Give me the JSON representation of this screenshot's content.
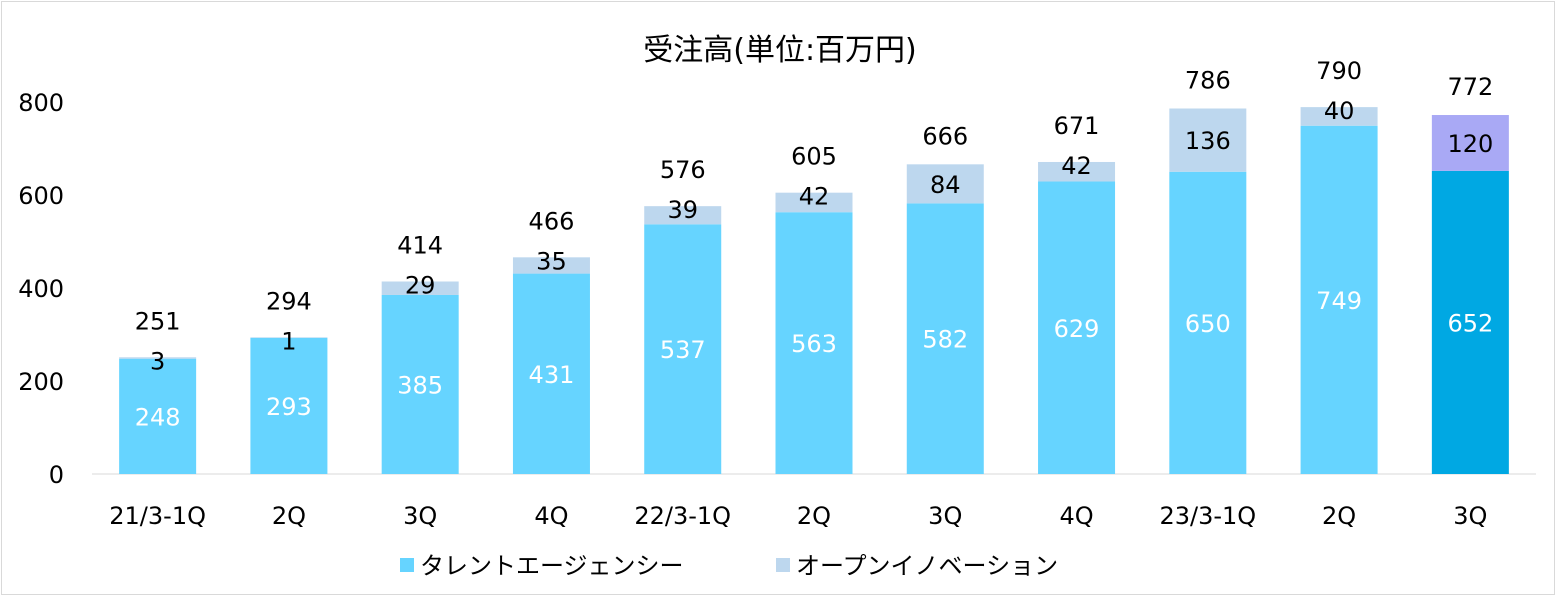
{
  "chart_data": {
    "type": "bar",
    "stacked": true,
    "title": "受注高(単位:百万円)",
    "categories": [
      "21/3-1Q",
      "2Q",
      "3Q",
      "4Q",
      "22/3-1Q",
      "2Q",
      "3Q",
      "4Q",
      "23/3-1Q",
      "2Q",
      "3Q"
    ],
    "series": [
      {
        "name": "タレントエージェンシー",
        "values": [
          248,
          293,
          385,
          431,
          537,
          563,
          582,
          629,
          650,
          749,
          652
        ],
        "color": "#66D4FF",
        "highlight_color": "#00A8E3"
      },
      {
        "name": "オープンイノベーション",
        "values": [
          3,
          1,
          29,
          35,
          39,
          42,
          84,
          42,
          136,
          40,
          120
        ],
        "color": "#BDD7EE",
        "highlight_color": "#A9A9F5"
      }
    ],
    "totals": [
      251,
      294,
      414,
      466,
      576,
      605,
      666,
      671,
      786,
      790,
      772
    ],
    "highlight_index": 10,
    "yticks": [
      0,
      200,
      400,
      600,
      800
    ],
    "ylim": [
      0,
      800
    ],
    "grid": false,
    "legend_position": "bottom"
  }
}
